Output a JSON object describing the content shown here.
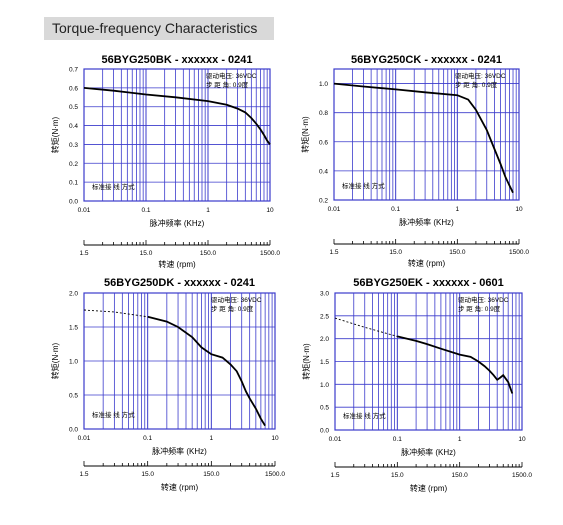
{
  "page_title": "Torque-frequency Characteristics",
  "colors": {
    "grid": "#3b3bcc",
    "curve": "#000000",
    "header_bg": "#d9d9d9"
  },
  "chart_data": [
    {
      "type": "line",
      "title": "56BYG250BK - xxxxxx - 0241",
      "xlabel": "脉冲频率 (KHz)",
      "ylabel": "转矩(N·m)",
      "x_scale": "log",
      "xlim": [
        0.01,
        10
      ],
      "ylim": [
        0,
        0.7
      ],
      "x_ticks": [
        "0.01",
        "0.1",
        "1",
        "10"
      ],
      "y_ticks": [
        "0.0",
        "0.1",
        "0.2",
        "0.3",
        "0.4",
        "0.5",
        "0.6",
        "0.7"
      ],
      "grid": true,
      "annotations": [
        "驱动电压: 36VDC",
        "步 距 角: 0.9度",
        "标准接 线 方式"
      ],
      "rpm_axis": {
        "label": "转速 (rpm)",
        "ticks": [
          "1.5",
          "15.0",
          "150.0",
          "1500.0"
        ]
      },
      "series": [
        {
          "style": "solid",
          "x": [
            0.01,
            0.03,
            0.1,
            0.3,
            1,
            2,
            3,
            4,
            5,
            6,
            7,
            8,
            9,
            10
          ],
          "y": [
            0.6,
            0.585,
            0.565,
            0.55,
            0.53,
            0.51,
            0.49,
            0.47,
            0.44,
            0.41,
            0.38,
            0.35,
            0.32,
            0.3
          ]
        }
      ]
    },
    {
      "type": "line",
      "title": "56BYG250CK - xxxxxx - 0241",
      "xlabel": "脉冲频率 (KHz)",
      "ylabel": "转矩(N·m)",
      "x_scale": "log",
      "xlim": [
        0.01,
        10
      ],
      "ylim": [
        0.2,
        1.1
      ],
      "x_ticks": [
        "0.01",
        "0.1",
        "1",
        "10"
      ],
      "y_ticks": [
        "0.2",
        "0.4",
        "0.6",
        "0.8",
        "1.0"
      ],
      "grid": true,
      "annotations": [
        "驱动电压: 36VDC",
        "步 距 角: 0.9度",
        "标准接 线 方式"
      ],
      "rpm_axis": {
        "label": "转速 (rpm)",
        "ticks": [
          "1.5",
          "15.0",
          "150.0",
          "1500.0"
        ]
      },
      "series": [
        {
          "style": "solid",
          "x": [
            0.01,
            0.03,
            0.1,
            0.3,
            1,
            1.5,
            2,
            3,
            4,
            5,
            6,
            7,
            8
          ],
          "y": [
            1.0,
            0.98,
            0.96,
            0.94,
            0.92,
            0.89,
            0.82,
            0.68,
            0.55,
            0.45,
            0.36,
            0.3,
            0.25
          ]
        }
      ]
    },
    {
      "type": "line",
      "title": "56BYG250DK - xxxxxx - 0241",
      "xlabel": "脉冲频率 (KHz)",
      "ylabel": "转矩(N·m)",
      "x_scale": "log",
      "xlim": [
        0.01,
        10
      ],
      "ylim": [
        0,
        2.0
      ],
      "x_ticks": [
        "0.01",
        "0.1",
        "1",
        "10"
      ],
      "y_ticks": [
        "0.0",
        "0.5",
        "1.0",
        "1.5",
        "2.0"
      ],
      "grid": true,
      "annotations": [
        "驱动电压: 36VDC",
        "步 距 角: 0.9度",
        "标准接 线 方式"
      ],
      "rpm_axis": {
        "label": "转速 (rpm)",
        "ticks": [
          "1.5",
          "15.0",
          "150.0",
          "1500.0"
        ]
      },
      "series": [
        {
          "style": "dashed",
          "x": [
            0.01,
            0.03,
            0.1
          ],
          "y": [
            1.75,
            1.72,
            1.65
          ]
        },
        {
          "style": "solid",
          "x": [
            0.1,
            0.2,
            0.3,
            0.5,
            0.7,
            1,
            1.5,
            2,
            2.5,
            3,
            3.5,
            4,
            5,
            6,
            7
          ],
          "y": [
            1.65,
            1.58,
            1.5,
            1.35,
            1.2,
            1.1,
            1.05,
            0.95,
            0.85,
            0.7,
            0.55,
            0.45,
            0.3,
            0.15,
            0.05
          ]
        }
      ]
    },
    {
      "type": "line",
      "title": "56BYG250EK - xxxxxx - 0601",
      "xlabel": "脉冲频率 (KHz)",
      "ylabel": "转矩(N·m)",
      "x_scale": "log",
      "xlim": [
        0.01,
        10
      ],
      "ylim": [
        0,
        3.0
      ],
      "x_ticks": [
        "0.01",
        "0.1",
        "1",
        "10"
      ],
      "y_ticks": [
        "0.0",
        "0.5",
        "1.0",
        "1.5",
        "2.0",
        "2.5",
        "3.0"
      ],
      "grid": true,
      "annotations": [
        "驱动电压: 36VDC",
        "步 距 角: 0.9度",
        "标准接 线 方式"
      ],
      "rpm_axis": {
        "label": "转速 (rpm)",
        "ticks": [
          "1.5",
          "15.0",
          "150.0",
          "1500.0"
        ]
      },
      "series": [
        {
          "style": "dashed",
          "x": [
            0.01,
            0.03,
            0.1
          ],
          "y": [
            2.45,
            2.25,
            2.05
          ]
        },
        {
          "style": "solid",
          "x": [
            0.1,
            0.2,
            0.3,
            0.5,
            1,
            1.5,
            2,
            2.5,
            3,
            3.5,
            4,
            4.5,
            5,
            6,
            7
          ],
          "y": [
            2.05,
            1.95,
            1.88,
            1.78,
            1.65,
            1.6,
            1.5,
            1.4,
            1.3,
            1.2,
            1.1,
            1.15,
            1.2,
            1.05,
            0.8
          ]
        }
      ]
    }
  ]
}
